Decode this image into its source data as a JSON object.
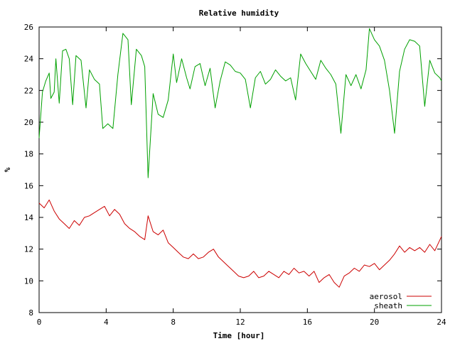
{
  "chart_data": {
    "type": "line",
    "title": "Relative humidity",
    "xlabel": "Time [hour]",
    "ylabel": "%",
    "xlim": [
      0,
      24
    ],
    "ylim": [
      8,
      26
    ],
    "xticks": [
      0,
      4,
      8,
      12,
      16,
      20,
      24
    ],
    "yticks": [
      8,
      10,
      12,
      14,
      16,
      18,
      20,
      22,
      24,
      26
    ],
    "grid": false,
    "legend": "bottom-right",
    "series": [
      {
        "name": "aerosol",
        "color": "#cc0000",
        "points": [
          [
            0.0,
            14.9
          ],
          [
            0.3,
            14.6
          ],
          [
            0.6,
            15.1
          ],
          [
            0.9,
            14.4
          ],
          [
            1.2,
            13.9
          ],
          [
            1.5,
            13.6
          ],
          [
            1.8,
            13.3
          ],
          [
            2.1,
            13.8
          ],
          [
            2.4,
            13.5
          ],
          [
            2.7,
            14.0
          ],
          [
            3.0,
            14.1
          ],
          [
            3.3,
            14.3
          ],
          [
            3.6,
            14.5
          ],
          [
            3.9,
            14.7
          ],
          [
            4.2,
            14.1
          ],
          [
            4.5,
            14.5
          ],
          [
            4.8,
            14.2
          ],
          [
            5.1,
            13.6
          ],
          [
            5.4,
            13.3
          ],
          [
            5.7,
            13.1
          ],
          [
            6.0,
            12.8
          ],
          [
            6.3,
            12.6
          ],
          [
            6.5,
            14.1
          ],
          [
            6.8,
            13.1
          ],
          [
            7.1,
            12.9
          ],
          [
            7.4,
            13.2
          ],
          [
            7.7,
            12.4
          ],
          [
            8.0,
            12.1
          ],
          [
            8.3,
            11.8
          ],
          [
            8.6,
            11.5
          ],
          [
            8.9,
            11.4
          ],
          [
            9.2,
            11.7
          ],
          [
            9.5,
            11.4
          ],
          [
            9.8,
            11.5
          ],
          [
            10.1,
            11.8
          ],
          [
            10.4,
            12.0
          ],
          [
            10.7,
            11.5
          ],
          [
            11.0,
            11.2
          ],
          [
            11.3,
            10.9
          ],
          [
            11.6,
            10.6
          ],
          [
            11.9,
            10.3
          ],
          [
            12.2,
            10.2
          ],
          [
            12.5,
            10.3
          ],
          [
            12.8,
            10.6
          ],
          [
            13.1,
            10.2
          ],
          [
            13.4,
            10.3
          ],
          [
            13.7,
            10.6
          ],
          [
            14.0,
            10.4
          ],
          [
            14.3,
            10.2
          ],
          [
            14.6,
            10.6
          ],
          [
            14.9,
            10.4
          ],
          [
            15.2,
            10.8
          ],
          [
            15.5,
            10.5
          ],
          [
            15.8,
            10.6
          ],
          [
            16.1,
            10.3
          ],
          [
            16.4,
            10.6
          ],
          [
            16.7,
            9.9
          ],
          [
            17.0,
            10.2
          ],
          [
            17.3,
            10.4
          ],
          [
            17.6,
            9.9
          ],
          [
            17.9,
            9.6
          ],
          [
            18.2,
            10.3
          ],
          [
            18.5,
            10.5
          ],
          [
            18.8,
            10.8
          ],
          [
            19.1,
            10.6
          ],
          [
            19.4,
            11.0
          ],
          [
            19.7,
            10.9
          ],
          [
            20.0,
            11.1
          ],
          [
            20.3,
            10.7
          ],
          [
            20.6,
            11.0
          ],
          [
            20.9,
            11.3
          ],
          [
            21.2,
            11.7
          ],
          [
            21.5,
            12.2
          ],
          [
            21.8,
            11.8
          ],
          [
            22.1,
            12.1
          ],
          [
            22.4,
            11.9
          ],
          [
            22.7,
            12.1
          ],
          [
            23.0,
            11.8
          ],
          [
            23.3,
            12.3
          ],
          [
            23.6,
            11.9
          ],
          [
            24.0,
            12.8
          ]
        ]
      },
      {
        "name": "sheath",
        "color": "#00a000",
        "points": [
          [
            0.0,
            19.0
          ],
          [
            0.2,
            21.9
          ],
          [
            0.4,
            22.6
          ],
          [
            0.6,
            23.1
          ],
          [
            0.7,
            21.5
          ],
          [
            0.9,
            21.9
          ],
          [
            1.0,
            24.0
          ],
          [
            1.2,
            21.2
          ],
          [
            1.4,
            24.5
          ],
          [
            1.6,
            24.6
          ],
          [
            1.8,
            24.0
          ],
          [
            2.0,
            21.1
          ],
          [
            2.2,
            24.2
          ],
          [
            2.5,
            23.9
          ],
          [
            2.8,
            20.9
          ],
          [
            3.0,
            23.3
          ],
          [
            3.3,
            22.7
          ],
          [
            3.6,
            22.4
          ],
          [
            3.8,
            19.6
          ],
          [
            4.1,
            19.9
          ],
          [
            4.4,
            19.6
          ],
          [
            4.7,
            23.0
          ],
          [
            5.0,
            25.6
          ],
          [
            5.3,
            25.2
          ],
          [
            5.5,
            21.1
          ],
          [
            5.8,
            24.6
          ],
          [
            6.1,
            24.2
          ],
          [
            6.3,
            23.5
          ],
          [
            6.5,
            16.5
          ],
          [
            6.8,
            21.8
          ],
          [
            7.1,
            20.5
          ],
          [
            7.4,
            20.3
          ],
          [
            7.7,
            21.4
          ],
          [
            8.0,
            24.3
          ],
          [
            8.2,
            22.5
          ],
          [
            8.5,
            24.0
          ],
          [
            8.8,
            22.8
          ],
          [
            9.0,
            22.1
          ],
          [
            9.3,
            23.5
          ],
          [
            9.6,
            23.7
          ],
          [
            9.9,
            22.3
          ],
          [
            10.2,
            23.4
          ],
          [
            10.5,
            20.9
          ],
          [
            10.8,
            22.6
          ],
          [
            11.1,
            23.8
          ],
          [
            11.4,
            23.6
          ],
          [
            11.7,
            23.2
          ],
          [
            12.0,
            23.1
          ],
          [
            12.3,
            22.7
          ],
          [
            12.6,
            20.9
          ],
          [
            12.9,
            22.8
          ],
          [
            13.2,
            23.2
          ],
          [
            13.5,
            22.4
          ],
          [
            13.8,
            22.7
          ],
          [
            14.1,
            23.3
          ],
          [
            14.4,
            22.9
          ],
          [
            14.7,
            22.6
          ],
          [
            15.0,
            22.8
          ],
          [
            15.3,
            21.4
          ],
          [
            15.6,
            24.3
          ],
          [
            15.9,
            23.7
          ],
          [
            16.2,
            23.2
          ],
          [
            16.5,
            22.7
          ],
          [
            16.8,
            23.9
          ],
          [
            17.1,
            23.4
          ],
          [
            17.4,
            23.0
          ],
          [
            17.7,
            22.4
          ],
          [
            18.0,
            19.3
          ],
          [
            18.3,
            23.0
          ],
          [
            18.6,
            22.3
          ],
          [
            18.9,
            23.0
          ],
          [
            19.2,
            22.1
          ],
          [
            19.5,
            23.3
          ],
          [
            19.7,
            25.9
          ],
          [
            20.0,
            25.2
          ],
          [
            20.3,
            24.8
          ],
          [
            20.6,
            23.9
          ],
          [
            20.9,
            22.0
          ],
          [
            21.2,
            19.3
          ],
          [
            21.5,
            23.2
          ],
          [
            21.8,
            24.6
          ],
          [
            22.1,
            25.2
          ],
          [
            22.4,
            25.1
          ],
          [
            22.7,
            24.8
          ],
          [
            23.0,
            21.0
          ],
          [
            23.3,
            23.9
          ],
          [
            23.6,
            23.1
          ],
          [
            23.9,
            22.8
          ],
          [
            24.0,
            22.6
          ]
        ]
      }
    ]
  }
}
